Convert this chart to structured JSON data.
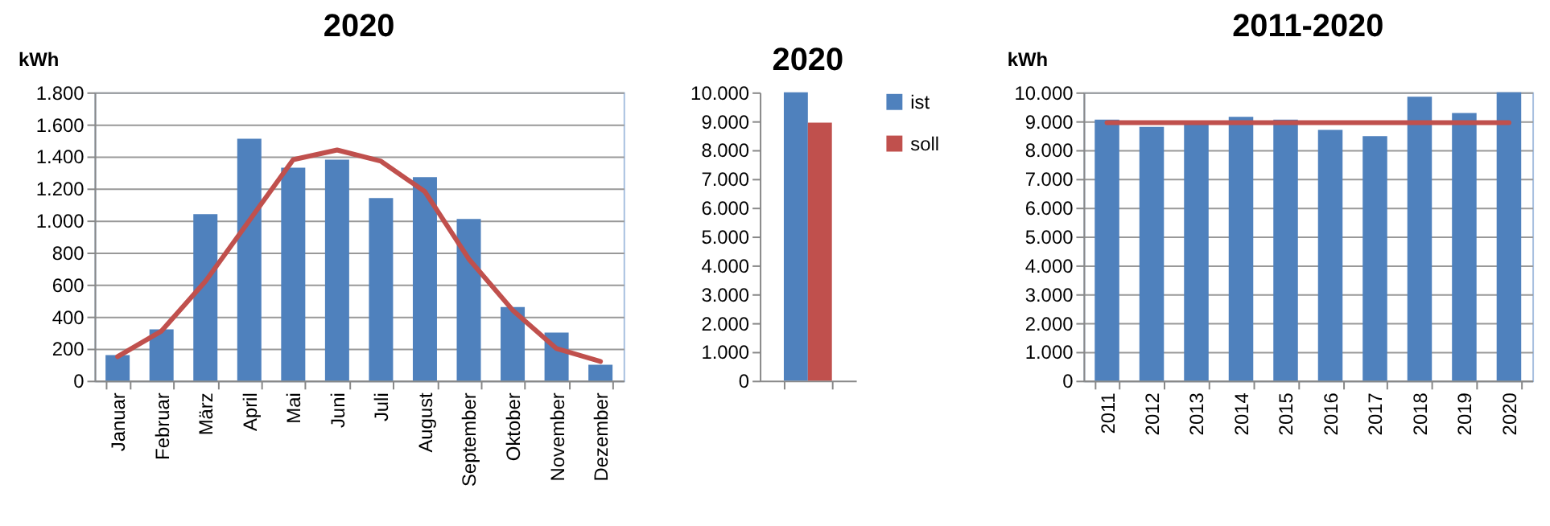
{
  "chart_data": [
    {
      "type": "bar",
      "title": "2020",
      "ylabel": "kWh",
      "categories": [
        "Januar",
        "Februar",
        "März",
        "April",
        "Mai",
        "Juni",
        "Juli",
        "August",
        "September",
        "Oktober",
        "November",
        "Dezember"
      ],
      "ylim": [
        0,
        1800
      ],
      "yticks": [
        0,
        200,
        400,
        600,
        800,
        {
          "value": 1000,
          "label": "1.000"
        },
        {
          "value": 1200,
          "label": "1.200"
        },
        {
          "value": 1400,
          "label": "1.400"
        },
        {
          "value": 1600,
          "label": "1.600"
        },
        {
          "value": 1800,
          "label": "1.800"
        }
      ],
      "grid": "y",
      "series": [
        {
          "color": "#4f81bd",
          "values": [
            160,
            320,
            1040,
            1510,
            1330,
            1380,
            1140,
            1270,
            1010,
            460,
            300,
            100
          ]
        },
        {
          "type": "line",
          "color": "#c0504d",
          "values": [
            150,
            310,
            620,
            1000,
            1380,
            1440,
            1370,
            1180,
            760,
            440,
            200,
            120
          ]
        }
      ]
    },
    {
      "type": "bar",
      "title": "2020",
      "categories": [
        null
      ],
      "ylim": [
        0,
        10000
      ],
      "yticks": [
        0,
        {
          "value": 1000,
          "label": "1.000"
        },
        {
          "value": 2000,
          "label": "2.000"
        },
        {
          "value": 3000,
          "label": "3.000"
        },
        {
          "value": 4000,
          "label": "4.000"
        },
        {
          "value": 5000,
          "label": "5.000"
        },
        {
          "value": 6000,
          "label": "6.000"
        },
        {
          "value": 7000,
          "label": "7.000"
        },
        {
          "value": 8000,
          "label": "8.000"
        },
        {
          "value": 9000,
          "label": "9.000"
        },
        {
          "value": 10000,
          "label": "10.000"
        }
      ],
      "legend": "right",
      "series": [
        {
          "name": "ist",
          "color": "#4f81bd",
          "values": [
            10000
          ]
        },
        {
          "name": "soll",
          "color": "#c0504d",
          "values": [
            8950
          ]
        }
      ]
    },
    {
      "type": "bar",
      "title": "2011-2020",
      "ylabel": "kWh",
      "categories": [
        "2011",
        "2012",
        "2013",
        "2014",
        "2015",
        "2016",
        "2017",
        "2018",
        "2019",
        "2020"
      ],
      "ylim": [
        0,
        10000
      ],
      "yticks": [
        0,
        {
          "value": 1000,
          "label": "1.000"
        },
        {
          "value": 2000,
          "label": "2.000"
        },
        {
          "value": 3000,
          "label": "3.000"
        },
        {
          "value": 4000,
          "label": "4.000"
        },
        {
          "value": 5000,
          "label": "5.000"
        },
        {
          "value": 6000,
          "label": "6.000"
        },
        {
          "value": 7000,
          "label": "7.000"
        },
        {
          "value": 8000,
          "label": "8.000"
        },
        {
          "value": 9000,
          "label": "9.000"
        },
        {
          "value": 10000,
          "label": "10.000"
        }
      ],
      "grid": "y",
      "series": [
        {
          "color": "#4f81bd",
          "values": [
            9050,
            8800,
            8950,
            9150,
            9050,
            8700,
            8480,
            9850,
            9280,
            10000
          ]
        },
        {
          "type": "line",
          "color": "#c0504d",
          "values": [
            8950,
            8950,
            8950,
            8950,
            8950,
            8950,
            8950,
            8950,
            8950,
            8950
          ]
        }
      ]
    }
  ]
}
